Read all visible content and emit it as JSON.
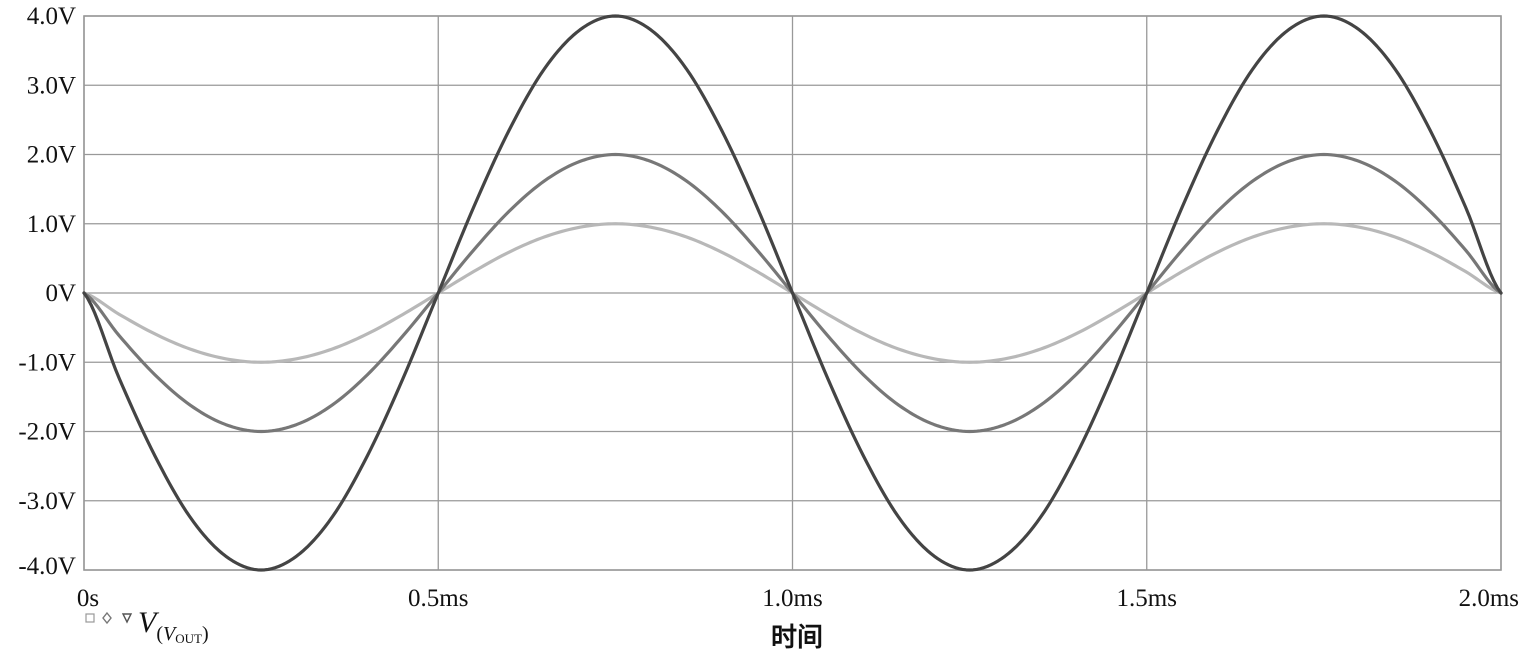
{
  "chart_data": {
    "type": "line",
    "title": "",
    "xlabel": "时间",
    "ylabel": "",
    "xlim": [
      0,
      2.0
    ],
    "ylim": [
      -4.0,
      4.0
    ],
    "grid": true,
    "x_ticks": [
      {
        "value": 0,
        "label": "0s"
      },
      {
        "value": 0.5,
        "label": "0.5ms"
      },
      {
        "value": 1.0,
        "label": "1.0ms"
      },
      {
        "value": 1.5,
        "label": "1.5ms"
      },
      {
        "value": 2.0,
        "label": "2.0ms"
      }
    ],
    "y_ticks": [
      {
        "value": 4,
        "label": "4.0V"
      },
      {
        "value": 3,
        "label": "3.0V"
      },
      {
        "value": 2,
        "label": "2.0V"
      },
      {
        "value": 1,
        "label": "1.0V"
      },
      {
        "value": 0,
        "label": "0V"
      },
      {
        "value": -1,
        "label": "-1.0V"
      },
      {
        "value": -2,
        "label": "-2.0V"
      },
      {
        "value": -3,
        "label": "-3.0V"
      },
      {
        "value": -4,
        "label": "-4.0V"
      }
    ],
    "x": [
      0,
      0.05,
      0.1,
      0.15,
      0.2,
      0.25,
      0.3,
      0.35,
      0.4,
      0.45,
      0.5,
      0.55,
      0.6,
      0.65,
      0.7,
      0.75,
      0.8,
      0.85,
      0.9,
      0.95,
      1.0,
      1.05,
      1.1,
      1.15,
      1.2,
      1.25,
      1.3,
      1.35,
      1.4,
      1.45,
      1.5,
      1.55,
      1.6,
      1.65,
      1.7,
      1.75,
      1.8,
      1.85,
      1.9,
      1.95,
      2.0
    ],
    "series": [
      {
        "color": "#b8b8b8",
        "values": [
          0,
          -0.31,
          -0.59,
          -0.81,
          -0.95,
          -1.0,
          -0.95,
          -0.81,
          -0.59,
          -0.31,
          0,
          0.31,
          0.59,
          0.81,
          0.95,
          1.0,
          0.95,
          0.81,
          0.59,
          0.31,
          0,
          -0.31,
          -0.59,
          -0.81,
          -0.95,
          -1.0,
          -0.95,
          -0.81,
          -0.59,
          -0.31,
          0,
          0.31,
          0.59,
          0.81,
          0.95,
          1.0,
          0.95,
          0.81,
          0.59,
          0.31,
          0
        ]
      },
      {
        "color": "#777777",
        "values": [
          0,
          -0.62,
          -1.18,
          -1.62,
          -1.9,
          -2.0,
          -1.9,
          -1.62,
          -1.18,
          -0.62,
          0,
          0.62,
          1.18,
          1.62,
          1.9,
          2.0,
          1.9,
          1.62,
          1.18,
          0.62,
          0,
          -0.62,
          -1.18,
          -1.62,
          -1.9,
          -2.0,
          -1.9,
          -1.62,
          -1.18,
          -0.62,
          0,
          0.62,
          1.18,
          1.62,
          1.9,
          2.0,
          1.9,
          1.62,
          1.18,
          0.62,
          0
        ]
      },
      {
        "color": "#444444",
        "values": [
          0,
          -1.24,
          -2.35,
          -3.24,
          -3.8,
          -4.0,
          -3.8,
          -3.24,
          -2.35,
          -1.24,
          0,
          1.24,
          2.35,
          3.24,
          3.8,
          4.0,
          3.8,
          3.24,
          2.35,
          1.24,
          0,
          -1.24,
          -2.35,
          -3.24,
          -3.8,
          -4.0,
          -3.8,
          -3.24,
          -2.35,
          -1.24,
          0,
          1.24,
          2.35,
          3.24,
          3.8,
          4.0,
          3.8,
          3.24,
          2.35,
          1.24,
          0
        ]
      }
    ],
    "legend": {
      "placement": "bottom-left",
      "markers": [
        "square",
        "diamond",
        "triangle-down"
      ],
      "var": "V",
      "sub_var": "V",
      "sub_sub": "OUT"
    }
  }
}
